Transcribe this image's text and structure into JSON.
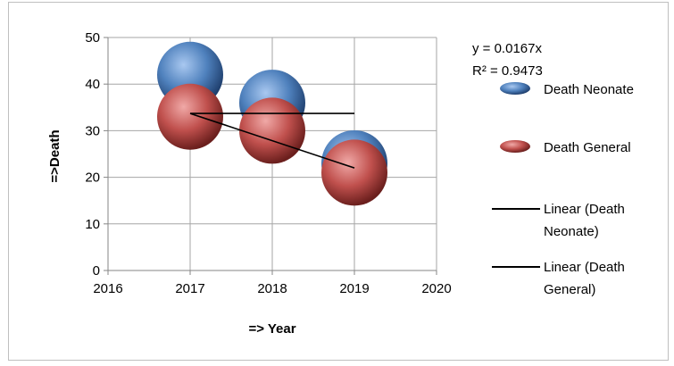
{
  "chart_data": {
    "type": "bubble",
    "xlabel": "=> Year",
    "ylabel": "=>Death",
    "xlim": [
      2016,
      2020
    ],
    "ylim": [
      0,
      50
    ],
    "x_ticks": [
      2016,
      2017,
      2018,
      2019,
      2020
    ],
    "y_ticks": [
      0,
      10,
      20,
      30,
      40,
      50
    ],
    "grid": "vertical-and-horizontal",
    "legend_position": "right",
    "series": [
      {
        "name": "Death Neonate",
        "color": "#4f81bd",
        "points": [
          {
            "x": 2017,
            "y": 42
          },
          {
            "x": 2018,
            "y": 36
          },
          {
            "x": 2019,
            "y": 23
          }
        ]
      },
      {
        "name": "Death General",
        "color": "#c0504d",
        "points": [
          {
            "x": 2017,
            "y": 33
          },
          {
            "x": 2018,
            "y": 30
          },
          {
            "x": 2019,
            "y": 21
          }
        ]
      }
    ],
    "trendlines": [
      {
        "name": "Linear (Death Neonate)",
        "color": "#000000",
        "points": [
          {
            "x": 2017,
            "y": 33.7
          },
          {
            "x": 2019,
            "y": 33.7
          }
        ]
      },
      {
        "name": "Linear (Death General)",
        "color": "#000000",
        "points": [
          {
            "x": 2017,
            "y": 33.7
          },
          {
            "x": 2019,
            "y": 22
          }
        ]
      }
    ],
    "annotations": {
      "equation": "y = 0.0167x",
      "r_squared": "R² = 0.9473"
    },
    "legend": {
      "neonate_label": "Death Neonate",
      "general_label": "Death General",
      "trend_neonate_line1": "Linear (Death",
      "trend_neonate_line2": "Neonate)",
      "trend_general_line1": "Linear (Death",
      "trend_general_line2": "General)"
    }
  }
}
